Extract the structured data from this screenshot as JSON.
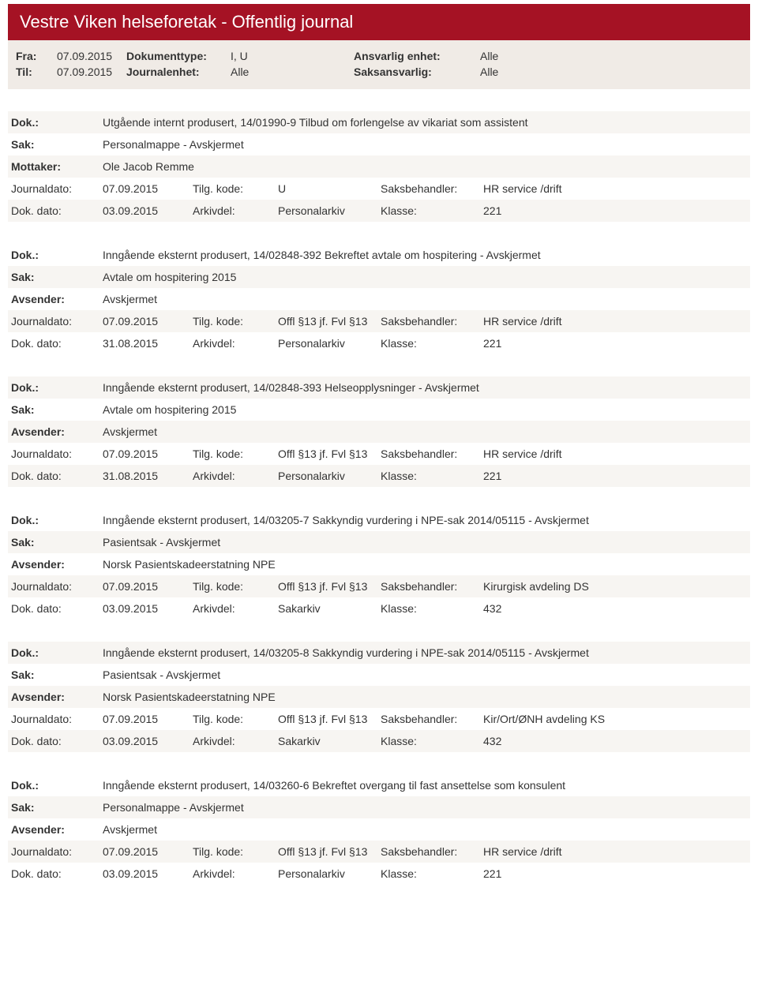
{
  "header": {
    "title": "Vestre Viken helseforetak - Offentlig journal"
  },
  "meta": {
    "fra_lbl": "Fra:",
    "fra_val": "07.09.2015",
    "til_lbl": "Til:",
    "til_val": "07.09.2015",
    "doktype_lbl": "Dokumenttype:",
    "doktype_val": "I, U",
    "journalenhet_lbl": "Journalenhet:",
    "journalenhet_val": "Alle",
    "ansvarlig_lbl": "Ansvarlig enhet:",
    "ansvarlig_val": "Alle",
    "saksansvarlig_lbl": "Saksansvarlig:",
    "saksansvarlig_val": "Alle"
  },
  "labels": {
    "dok": "Dok.:",
    "sak": "Sak:",
    "mottaker": "Mottaker:",
    "avsender": "Avsender:",
    "journaldato": "Journaldato:",
    "dokdato": "Dok. dato:",
    "tilgkode": "Tilg. kode:",
    "arkivdel": "Arkivdel:",
    "saksbehandler": "Saksbehandler:",
    "klasse": "Klasse:"
  },
  "entries": [
    {
      "dok": "Utgående internt produsert, 14/01990-9 Tilbud om forlengelse av vikariat som assistent",
      "sak": "Personalmappe - Avskjermet",
      "party_lbl_key": "mottaker",
      "party": "Ole Jacob Remme",
      "journaldato": "07.09.2015",
      "tilgkode": "U",
      "saksbehandler": "HR service /drift",
      "dokdato": "03.09.2015",
      "arkivdel": "Personalarkiv",
      "klasse": "221",
      "stripe_start": 0
    },
    {
      "dok": "Inngående eksternt produsert, 14/02848-392 Bekreftet avtale om hospitering - Avskjermet",
      "sak": "Avtale om hospitering 2015",
      "party_lbl_key": "avsender",
      "party": "Avskjermet",
      "journaldato": "07.09.2015",
      "tilgkode": "Offl §13 jf. Fvl §13",
      "saksbehandler": "HR service /drift",
      "dokdato": "31.08.2015",
      "arkivdel": "Personalarkiv",
      "klasse": "221",
      "stripe_start": 1
    },
    {
      "dok": "Inngående eksternt produsert, 14/02848-393 Helseopplysninger - Avskjermet",
      "sak": "Avtale om hospitering 2015",
      "party_lbl_key": "avsender",
      "party": "Avskjermet",
      "journaldato": "07.09.2015",
      "tilgkode": "Offl §13 jf. Fvl §13",
      "saksbehandler": "HR service /drift",
      "dokdato": "31.08.2015",
      "arkivdel": "Personalarkiv",
      "klasse": "221",
      "stripe_start": 0
    },
    {
      "dok": "Inngående eksternt produsert, 14/03205-7 Sakkyndig vurdering i NPE-sak 2014/05115 - Avskjermet",
      "sak": "Pasientsak - Avskjermet",
      "party_lbl_key": "avsender",
      "party": "Norsk Pasientskadeerstatning NPE",
      "journaldato": "07.09.2015",
      "tilgkode": "Offl §13 jf. Fvl §13",
      "saksbehandler": "Kirurgisk avdeling DS",
      "dokdato": "03.09.2015",
      "arkivdel": "Sakarkiv",
      "klasse": "432",
      "stripe_start": 1
    },
    {
      "dok": "Inngående eksternt produsert, 14/03205-8 Sakkyndig vurdering i NPE-sak 2014/05115 - Avskjermet",
      "sak": "Pasientsak - Avskjermet",
      "party_lbl_key": "avsender",
      "party": "Norsk Pasientskadeerstatning NPE",
      "journaldato": "07.09.2015",
      "tilgkode": "Offl §13 jf. Fvl §13",
      "saksbehandler": "Kir/Ort/ØNH avdeling KS",
      "dokdato": "03.09.2015",
      "arkivdel": "Sakarkiv",
      "klasse": "432",
      "stripe_start": 0
    },
    {
      "dok": "Inngående eksternt produsert, 14/03260-6 Bekreftet overgang til fast ansettelse som konsulent",
      "sak": "Personalmappe - Avskjermet",
      "party_lbl_key": "avsender",
      "party": "Avskjermet",
      "journaldato": "07.09.2015",
      "tilgkode": "Offl §13 jf. Fvl §13",
      "saksbehandler": "HR service /drift",
      "dokdato": "03.09.2015",
      "arkivdel": "Personalarkiv",
      "klasse": "221",
      "stripe_start": 1
    }
  ]
}
